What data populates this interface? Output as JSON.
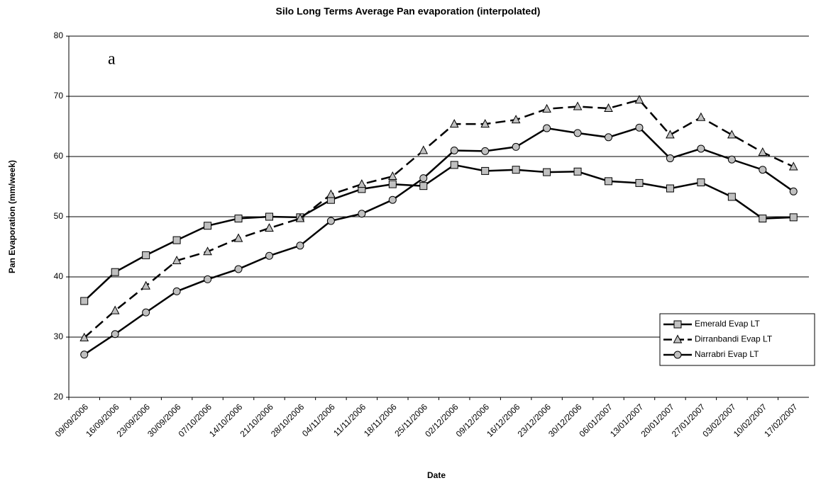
{
  "chart_data": {
    "type": "line",
    "title": "Silo Long Terms Average Pan evaporation (interpolated)",
    "x_label": "Date",
    "y_label": "Pan Evaporation (mm/week)",
    "annotation": "a",
    "categories": [
      "09/09/2006",
      "16/09/2006",
      "23/09/2006",
      "30/09/2006",
      "07/10/2006",
      "14/10/2006",
      "21/10/2006",
      "28/10/2006",
      "04/11/2006",
      "11/11/2006",
      "18/11/2006",
      "25/11/2006",
      "02/12/2006",
      "09/12/2006",
      "16/12/2006",
      "23/12/2006",
      "30/12/2006",
      "06/01/2007",
      "13/01/2007",
      "20/01/2007",
      "27/01/2007",
      "03/02/2007",
      "10/02/2007",
      "17/02/2007"
    ],
    "series": [
      {
        "name": "Emerald Evap LT",
        "color": "#000000",
        "marker": "square",
        "dashed": false,
        "values": [
          36,
          40.8,
          43.6,
          46.1,
          48.5,
          49.7,
          50,
          49.9,
          52.8,
          54.6,
          55.4,
          55.1,
          58.6,
          57.6,
          57.8,
          57.4,
          57.5,
          55.9,
          55.6,
          54.7,
          55.7,
          53.3,
          49.7,
          49.9
        ]
      },
      {
        "name": "Dirranbandi Evap LT",
        "color": "#000000",
        "marker": "triangle",
        "dashed": true,
        "values": [
          29.9,
          34.4,
          38.5,
          42.7,
          44.2,
          46.4,
          48.1,
          49.7,
          53.7,
          55.4,
          56.7,
          61,
          65.4,
          65.4,
          66.1,
          67.9,
          68.3,
          68,
          69.4,
          63.6,
          66.5,
          63.6,
          60.7,
          58.3
        ]
      },
      {
        "name": "Narrabri Evap LT",
        "color": "#000000",
        "marker": "circle",
        "dashed": false,
        "values": [
          27.1,
          30.5,
          34.1,
          37.6,
          39.6,
          41.3,
          43.5,
          45.2,
          49.3,
          50.5,
          52.8,
          56.4,
          61,
          60.9,
          61.6,
          64.7,
          63.9,
          63.2,
          64.8,
          59.7,
          61.3,
          59.5,
          57.8,
          54.2
        ]
      }
    ],
    "marker_fill": "#c0c0c0",
    "ylim": [
      20,
      80
    ],
    "yticks": [
      20,
      30,
      40,
      50,
      60,
      70,
      80
    ],
    "grid": true,
    "legend": "lower right"
  }
}
